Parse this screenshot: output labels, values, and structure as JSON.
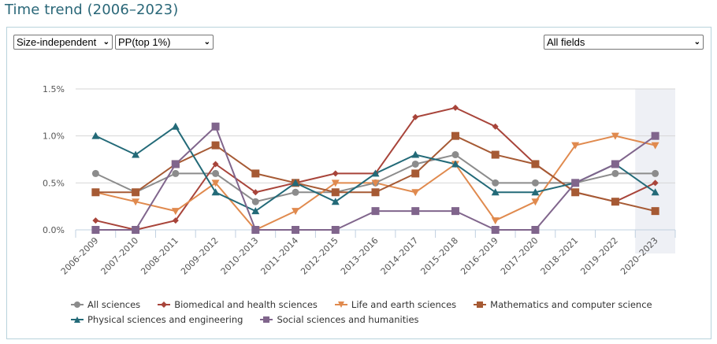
{
  "header": {
    "title": "Time trend (2006–2023)"
  },
  "controls": {
    "indicator_type": "Size-independent",
    "indicator": "PP(top 1%)",
    "field": "All fields"
  },
  "chart_data": {
    "type": "line",
    "title": "",
    "xlabel": "",
    "ylabel": "",
    "ylim": [
      0,
      1.5
    ],
    "y_unit": "%",
    "y_ticks": [
      "0.0%",
      "0.5%",
      "1.0%",
      "1.5%"
    ],
    "y_tick_values": [
      0,
      0.5,
      1.0,
      1.5
    ],
    "grid": true,
    "legend_position": "bottom",
    "highlighted_category": "2020–2023",
    "categories": [
      "2006–2009",
      "2007–2010",
      "2008–2011",
      "2009–2012",
      "2010–2013",
      "2011–2014",
      "2012–2015",
      "2013–2016",
      "2014–2017",
      "2015–2018",
      "2016–2019",
      "2017–2020",
      "2018–2021",
      "2019–2022",
      "2020–2023"
    ],
    "series": [
      {
        "name": "All sciences",
        "color": "#8c8c8c",
        "marker": "circle",
        "values": [
          0.6,
          0.4,
          0.6,
          0.6,
          0.3,
          0.4,
          0.4,
          0.5,
          0.7,
          0.8,
          0.5,
          0.5,
          0.5,
          0.6,
          0.6
        ]
      },
      {
        "name": "Biomedical and health sciences",
        "color": "#a8443a",
        "marker": "diamond",
        "values": [
          0.1,
          0.0,
          0.1,
          0.7,
          0.4,
          0.5,
          0.6,
          0.6,
          1.2,
          1.3,
          1.1,
          0.7,
          0.4,
          0.3,
          0.5
        ]
      },
      {
        "name": "Life and earth sciences",
        "color": "#e08a4e",
        "marker": "triangle-down",
        "values": [
          0.4,
          0.3,
          0.2,
          0.5,
          0.0,
          0.2,
          0.5,
          0.5,
          0.4,
          0.7,
          0.1,
          0.3,
          0.9,
          1.0,
          0.9
        ]
      },
      {
        "name": "Mathematics and computer science",
        "color": "#a65a34",
        "marker": "square",
        "values": [
          0.4,
          0.4,
          0.7,
          0.9,
          0.6,
          0.5,
          0.4,
          0.4,
          0.6,
          1.0,
          0.8,
          0.7,
          0.4,
          0.3,
          0.2
        ]
      },
      {
        "name": "Physical sciences and engineering",
        "color": "#236a78",
        "marker": "triangle-up",
        "values": [
          1.0,
          0.8,
          1.1,
          0.4,
          0.2,
          0.5,
          0.3,
          0.6,
          0.8,
          0.7,
          0.4,
          0.4,
          0.5,
          0.7,
          0.4
        ]
      },
      {
        "name": "Social sciences and humanities",
        "color": "#80658c",
        "marker": "square",
        "values": [
          0.0,
          0.0,
          0.7,
          1.1,
          0.0,
          0.0,
          0.0,
          0.2,
          0.2,
          0.2,
          0.0,
          0.0,
          0.5,
          0.7,
          1.0
        ]
      }
    ]
  }
}
